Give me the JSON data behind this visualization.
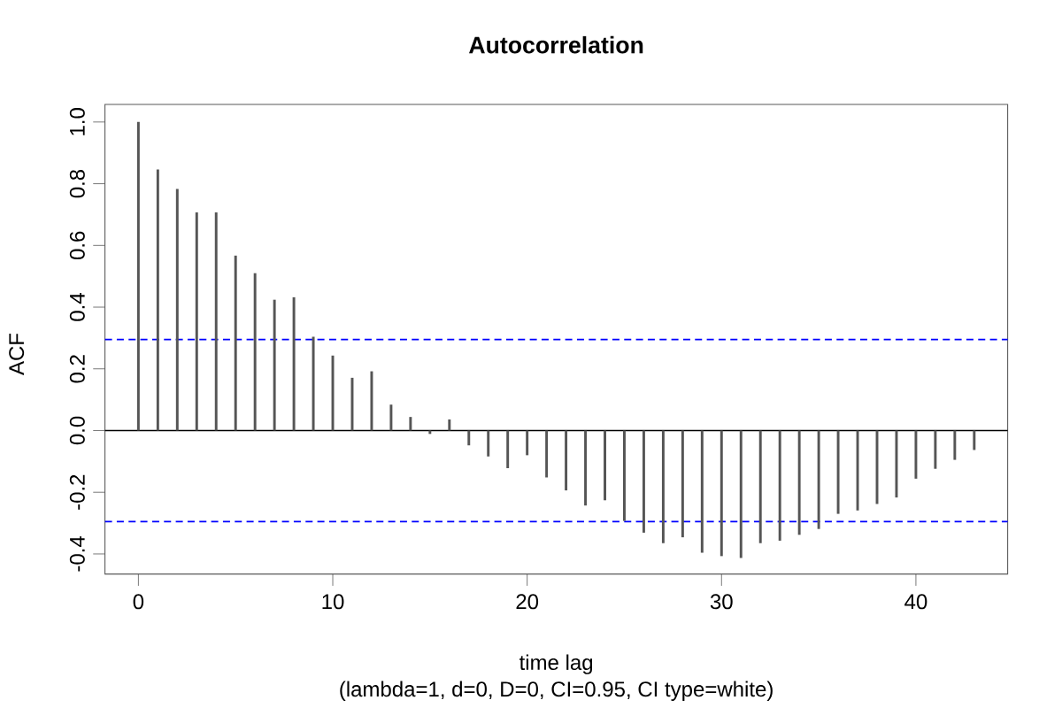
{
  "chart_data": {
    "type": "bar",
    "title": "Autocorrelation",
    "xlabel": "time lag",
    "ylabel": "ACF",
    "annotations": [
      "(lambda=1, d=0, D=0, CI=0.95, CI type=white)"
    ],
    "x": [
      0,
      1,
      2,
      3,
      4,
      5,
      6,
      7,
      8,
      9,
      10,
      11,
      12,
      13,
      14,
      15,
      16,
      17,
      18,
      19,
      20,
      21,
      22,
      23,
      24,
      25,
      26,
      27,
      28,
      29,
      30,
      31,
      32,
      33,
      34,
      35,
      36,
      37,
      38,
      39,
      40,
      41,
      42,
      43
    ],
    "values": [
      1.0,
      0.846,
      0.783,
      0.707,
      0.707,
      0.567,
      0.51,
      0.424,
      0.432,
      0.304,
      0.243,
      0.171,
      0.192,
      0.084,
      0.044,
      -0.011,
      0.036,
      -0.048,
      -0.084,
      -0.122,
      -0.08,
      -0.152,
      -0.194,
      -0.243,
      -0.226,
      -0.293,
      -0.331,
      -0.365,
      -0.346,
      -0.396,
      -0.407,
      -0.413,
      -0.365,
      -0.357,
      -0.338,
      -0.319,
      -0.27,
      -0.259,
      -0.238,
      -0.217,
      -0.156,
      -0.124,
      -0.095,
      -0.063
    ],
    "color": "#555555",
    "xlim": [
      -1.72,
      44.72
    ],
    "ylim": [
      -0.465,
      1.057
    ],
    "xticks": [
      0,
      10,
      20,
      30,
      40
    ],
    "yticks": [
      -0.4,
      -0.2,
      {
        "value": 0,
        "label": "0.0"
      },
      0.2,
      0.4,
      0.6,
      0.8,
      {
        "value": 1,
        "label": "1.0"
      }
    ],
    "ref_lines": [
      {
        "axis": "y",
        "value": 0,
        "color": "#000000",
        "line_style": "solid"
      },
      {
        "axis": "y",
        "value": 0.295,
        "color": "#0000ff",
        "line_style": "dashed"
      },
      {
        "axis": "y",
        "value": -0.295,
        "color": "#0000ff",
        "line_style": "dashed"
      }
    ],
    "grid": false
  }
}
